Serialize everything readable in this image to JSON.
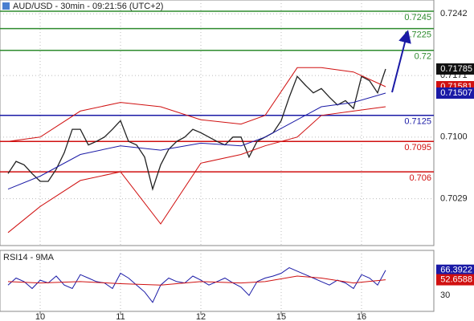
{
  "chart_data": [
    {
      "type": "line",
      "title": "AUD/USD - 30min - 09:21:56 (UTC+2)",
      "x": [
        1,
        2,
        3,
        4,
        5,
        6,
        7,
        8,
        9,
        10,
        11,
        12,
        13,
        14,
        15,
        16,
        17,
        18,
        19,
        20,
        21,
        22,
        23,
        24,
        25,
        26,
        27,
        28,
        29,
        30,
        31,
        32,
        33,
        34,
        35,
        36,
        37,
        38,
        39,
        40,
        41,
        42,
        43,
        44,
        45,
        46,
        47,
        48
      ],
      "xlim": [
        0,
        54
      ],
      "xticks": [
        {
          "value": 5,
          "label": "10"
        },
        {
          "value": 15,
          "label": "11"
        },
        {
          "value": 25,
          "label": "12"
        },
        {
          "value": 35,
          "label": "15"
        },
        {
          "value": 45,
          "label": "16"
        }
      ],
      "ylim": [
        0.6975,
        0.7258
      ],
      "yticks": [
        0.7029,
        {
          "value": 0.71,
          "label": "0.7100"
        },
        0.7171,
        0.7242
      ],
      "grid": true,
      "levels": [
        {
          "value": 0.7245,
          "color": "#2e8b2e"
        },
        {
          "value": 0.7225,
          "color": "#2e8b2e"
        },
        {
          "value": 0.72,
          "color": "#2e8b2e"
        },
        {
          "value": 0.7125,
          "color": "#1a1aa6"
        },
        {
          "value": 0.7095,
          "color": "#d01010"
        },
        {
          "value": 0.706,
          "color": "#d01010"
        }
      ],
      "series": [
        {
          "color": "#222222",
          "tag": true,
          "values": [
            0.7058,
            0.7072,
            0.7068,
            0.7058,
            0.7049,
            0.7049,
            0.7063,
            0.7082,
            0.7109,
            0.7109,
            0.7091,
            0.7095,
            0.71,
            0.7109,
            0.7119,
            0.7095,
            0.7091,
            0.7077,
            0.704,
            0.7068,
            0.7086,
            0.7095,
            0.71,
            0.7109,
            0.7105,
            0.71,
            0.7095,
            0.7091,
            0.71,
            0.71,
            0.7077,
            0.7095,
            0.71,
            0.7105,
            0.7119,
            0.7146,
            0.717,
            0.716,
            0.7151,
            0.7156,
            0.7146,
            0.7137,
            0.7142,
            0.7133,
            0.717,
            0.7165,
            0.7151,
            0.71785
          ]
        },
        {
          "color": "#d01010",
          "tag": true,
          "x": [
            1,
            5,
            10,
            15,
            20,
            25,
            30,
            33,
            37,
            40,
            44,
            48
          ],
          "values": [
            0.7095,
            0.71,
            0.713,
            0.714,
            0.7135,
            0.712,
            0.7115,
            0.7125,
            0.718,
            0.718,
            0.7175,
            0.71581
          ]
        },
        {
          "color": "#1a1aa6",
          "tag": true,
          "x": [
            1,
            5,
            10,
            15,
            20,
            25,
            30,
            33,
            37,
            40,
            44,
            48
          ],
          "values": [
            0.704,
            0.7055,
            0.708,
            0.709,
            0.7085,
            0.7093,
            0.709,
            0.71,
            0.712,
            0.7135,
            0.714,
            0.71507
          ]
        },
        {
          "color": "#d01010",
          "tag": false,
          "x": [
            1,
            5,
            10,
            15,
            20,
            25,
            30,
            33,
            37,
            40,
            44,
            48
          ],
          "values": [
            0.699,
            0.702,
            0.705,
            0.706,
            0.7,
            0.707,
            0.708,
            0.709,
            0.71,
            0.7125,
            0.713,
            0.7135
          ]
        }
      ]
    },
    {
      "type": "line",
      "title": "RSI14 - 9MA",
      "x": [
        1,
        2,
        3,
        4,
        5,
        6,
        7,
        8,
        9,
        10,
        11,
        12,
        13,
        14,
        15,
        16,
        17,
        18,
        19,
        20,
        21,
        22,
        23,
        24,
        25,
        26,
        27,
        28,
        29,
        30,
        31,
        32,
        33,
        34,
        35,
        36,
        37,
        38,
        39,
        40,
        41,
        42,
        43,
        44,
        45,
        46,
        47,
        48
      ],
      "xlim": [
        0,
        54
      ],
      "ylim": [
        7,
        95
      ],
      "yticks": [
        30
      ],
      "series": [
        {
          "color": "#1a1aa6",
          "tag": true,
          "values": [
            45,
            55,
            50,
            40,
            52,
            48,
            58,
            45,
            40,
            60,
            55,
            50,
            48,
            40,
            62,
            55,
            45,
            35,
            20,
            45,
            55,
            50,
            48,
            58,
            52,
            45,
            50,
            55,
            48,
            42,
            30,
            50,
            55,
            58,
            62,
            70,
            65,
            60,
            55,
            50,
            45,
            52,
            48,
            40,
            60,
            55,
            45,
            66.3922
          ]
        },
        {
          "color": "#d01010",
          "tag": true,
          "x": [
            1,
            5,
            10,
            15,
            20,
            25,
            30,
            33,
            37,
            40,
            44,
            48
          ],
          "values": [
            50,
            48,
            50,
            47,
            45,
            50,
            48,
            50,
            58,
            55,
            48,
            52.6588
          ]
        }
      ]
    }
  ]
}
